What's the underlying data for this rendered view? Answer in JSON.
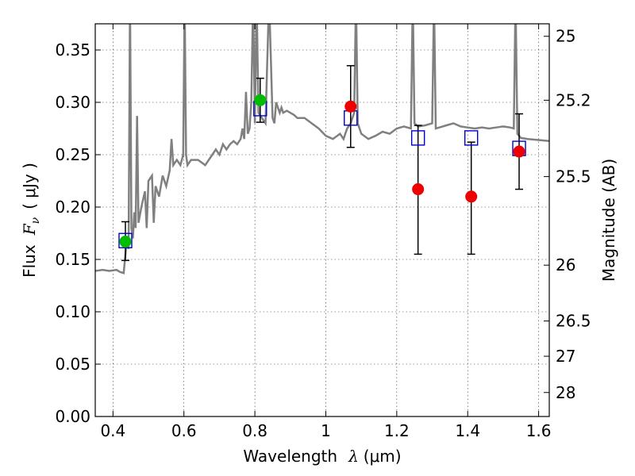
{
  "chart_data": {
    "type": "scatter",
    "xlabel": "Wavelength  λ (μm)",
    "ylabel": "Flux  F_ν  ( μJy )",
    "ylabel_parts": {
      "prefix": "Flux",
      "symbol": "F",
      "subscript": "ν",
      "unit": "( μJy )"
    },
    "xlabel_parts": {
      "prefix": "Wavelength",
      "symbol": "λ",
      "unit": "(μm)"
    },
    "y2label": "Magnitude (AB)",
    "xlim": [
      0.35,
      1.63
    ],
    "ylim": [
      0.0,
      0.375
    ],
    "grid": true,
    "x_ticks": [
      {
        "value": 0.4,
        "label": "0.4"
      },
      {
        "value": 0.6,
        "label": "0.6"
      },
      {
        "value": 0.8,
        "label": "0.8"
      },
      {
        "value": 1.0,
        "label": "1"
      },
      {
        "value": 1.2,
        "label": "1.2"
      },
      {
        "value": 1.4,
        "label": "1.4"
      },
      {
        "value": 1.6,
        "label": "1.6"
      }
    ],
    "y_ticks": [
      {
        "value": 0.0,
        "label": "0.00"
      },
      {
        "value": 0.05,
        "label": "0.05"
      },
      {
        "value": 0.1,
        "label": "0.10"
      },
      {
        "value": 0.15,
        "label": "0.15"
      },
      {
        "value": 0.2,
        "label": "0.20"
      },
      {
        "value": 0.25,
        "label": "0.25"
      },
      {
        "value": 0.3,
        "label": "0.30"
      },
      {
        "value": 0.35,
        "label": "0.35"
      }
    ],
    "mag_ticks": [
      {
        "value": 25,
        "label": "25"
      },
      {
        "value": 25.2,
        "label": "25.2"
      },
      {
        "value": 25.5,
        "label": "25.5"
      },
      {
        "value": 26,
        "label": "26"
      },
      {
        "value": 26.5,
        "label": "26.5"
      },
      {
        "value": 27,
        "label": "27"
      },
      {
        "value": 28,
        "label": "28"
      }
    ],
    "model_spectrum": {
      "color": "#808080",
      "points": [
        [
          0.35,
          0.139
        ],
        [
          0.37,
          0.14
        ],
        [
          0.39,
          0.139
        ],
        [
          0.41,
          0.14
        ],
        [
          0.42,
          0.138
        ],
        [
          0.43,
          0.137
        ],
        [
          0.438,
          0.165
        ],
        [
          0.444,
          0.16
        ],
        [
          0.448,
          0.4
        ],
        [
          0.452,
          0.18
        ],
        [
          0.456,
          0.17
        ],
        [
          0.46,
          0.195
        ],
        [
          0.464,
          0.18
        ],
        [
          0.468,
          0.287
        ],
        [
          0.472,
          0.185
        ],
        [
          0.48,
          0.2
        ],
        [
          0.49,
          0.215
        ],
        [
          0.495,
          0.18
        ],
        [
          0.5,
          0.225
        ],
        [
          0.51,
          0.23
        ],
        [
          0.515,
          0.185
        ],
        [
          0.52,
          0.22
        ],
        [
          0.53,
          0.21
        ],
        [
          0.54,
          0.23
        ],
        [
          0.55,
          0.22
        ],
        [
          0.56,
          0.235
        ],
        [
          0.565,
          0.265
        ],
        [
          0.57,
          0.24
        ],
        [
          0.58,
          0.245
        ],
        [
          0.59,
          0.24
        ],
        [
          0.598,
          0.25
        ],
        [
          0.602,
          0.4
        ],
        [
          0.606,
          0.25
        ],
        [
          0.61,
          0.24
        ],
        [
          0.62,
          0.245
        ],
        [
          0.64,
          0.245
        ],
        [
          0.66,
          0.24
        ],
        [
          0.67,
          0.245
        ],
        [
          0.68,
          0.25
        ],
        [
          0.69,
          0.255
        ],
        [
          0.7,
          0.25
        ],
        [
          0.71,
          0.26
        ],
        [
          0.72,
          0.255
        ],
        [
          0.73,
          0.26
        ],
        [
          0.74,
          0.263
        ],
        [
          0.75,
          0.26
        ],
        [
          0.76,
          0.265
        ],
        [
          0.765,
          0.275
        ],
        [
          0.77,
          0.265
        ],
        [
          0.775,
          0.31
        ],
        [
          0.78,
          0.27
        ],
        [
          0.785,
          0.275
        ],
        [
          0.79,
          0.3
        ],
        [
          0.795,
          0.4
        ],
        [
          0.8,
          0.28
        ],
        [
          0.805,
          0.4
        ],
        [
          0.81,
          0.29
        ],
        [
          0.82,
          0.285
        ],
        [
          0.83,
          0.28
        ],
        [
          0.84,
          0.4
        ],
        [
          0.85,
          0.285
        ],
        [
          0.855,
          0.28
        ],
        [
          0.86,
          0.3
        ],
        [
          0.87,
          0.29
        ],
        [
          0.875,
          0.295
        ],
        [
          0.88,
          0.29
        ],
        [
          0.89,
          0.292
        ],
        [
          0.9,
          0.29
        ],
        [
          0.91,
          0.288
        ],
        [
          0.92,
          0.285
        ],
        [
          0.93,
          0.285
        ],
        [
          0.94,
          0.285
        ],
        [
          0.96,
          0.28
        ],
        [
          0.98,
          0.275
        ],
        [
          1.0,
          0.268
        ],
        [
          1.02,
          0.265
        ],
        [
          1.04,
          0.27
        ],
        [
          1.05,
          0.265
        ],
        [
          1.06,
          0.275
        ],
        [
          1.07,
          0.28
        ],
        [
          1.08,
          0.29
        ],
        [
          1.085,
          0.4
        ],
        [
          1.09,
          0.28
        ],
        [
          1.1,
          0.27
        ],
        [
          1.12,
          0.265
        ],
        [
          1.14,
          0.268
        ],
        [
          1.16,
          0.272
        ],
        [
          1.18,
          0.27
        ],
        [
          1.2,
          0.275
        ],
        [
          1.22,
          0.277
        ],
        [
          1.24,
          0.275
        ],
        [
          1.245,
          0.4
        ],
        [
          1.25,
          0.28
        ],
        [
          1.26,
          0.277
        ],
        [
          1.28,
          0.278
        ],
        [
          1.3,
          0.28
        ],
        [
          1.305,
          0.4
        ],
        [
          1.31,
          0.275
        ],
        [
          1.32,
          0.276
        ],
        [
          1.34,
          0.278
        ],
        [
          1.36,
          0.28
        ],
        [
          1.38,
          0.277
        ],
        [
          1.4,
          0.276
        ],
        [
          1.42,
          0.275
        ],
        [
          1.44,
          0.276
        ],
        [
          1.46,
          0.275
        ],
        [
          1.48,
          0.276
        ],
        [
          1.5,
          0.277
        ],
        [
          1.52,
          0.276
        ],
        [
          1.53,
          0.275
        ],
        [
          1.535,
          0.4
        ],
        [
          1.54,
          0.27
        ],
        [
          1.55,
          0.266
        ],
        [
          1.57,
          0.265
        ],
        [
          1.6,
          0.264
        ],
        [
          1.63,
          0.263
        ]
      ]
    },
    "series": [
      {
        "marker": "open-square",
        "color": "#0000cc",
        "points": [
          {
            "x": 0.435,
            "y": 0.168
          },
          {
            "x": 0.815,
            "y": 0.294
          },
          {
            "x": 1.07,
            "y": 0.285
          },
          {
            "x": 1.26,
            "y": 0.266
          },
          {
            "x": 1.41,
            "y": 0.266
          },
          {
            "x": 1.545,
            "y": 0.256
          }
        ]
      },
      {
        "marker": "filled-circle",
        "color": "#00bb00",
        "points": [
          {
            "x": 0.435,
            "y": 0.167,
            "yerr_low": 0.149,
            "yerr_high": 0.186
          },
          {
            "x": 0.815,
            "y": 0.302,
            "yerr_low": 0.281,
            "yerr_high": 0.323
          }
        ]
      },
      {
        "marker": "filled-circle",
        "color": "#ee0000",
        "points": [
          {
            "x": 1.07,
            "y": 0.296,
            "yerr_low": 0.257,
            "yerr_high": 0.335
          },
          {
            "x": 1.26,
            "y": 0.217,
            "yerr_low": 0.155,
            "yerr_high": 0.278
          },
          {
            "x": 1.41,
            "y": 0.21,
            "yerr_low": 0.155,
            "yerr_high": 0.262
          },
          {
            "x": 1.545,
            "y": 0.253,
            "yerr_low": 0.217,
            "yerr_high": 0.289
          }
        ]
      }
    ]
  }
}
